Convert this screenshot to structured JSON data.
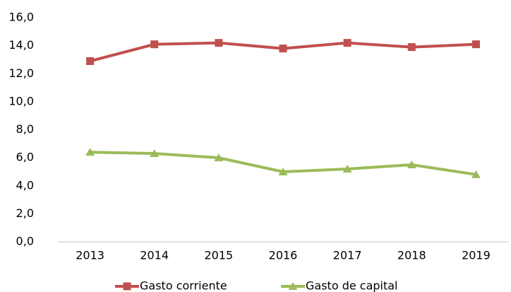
{
  "chart_data": {
    "type": "line",
    "categories": [
      "2013",
      "2014",
      "2015",
      "2016",
      "2017",
      "2018",
      "2019"
    ],
    "series": [
      {
        "name": "Gasto corriente",
        "color": "#c0504d",
        "marker": "square",
        "values": [
          12.9,
          14.1,
          14.2,
          13.8,
          14.2,
          13.9,
          14.1
        ]
      },
      {
        "name": "Gasto de capital",
        "color": "#9bbb59",
        "marker": "triangle",
        "values": [
          6.4,
          6.3,
          6.0,
          5.0,
          5.2,
          5.5,
          4.8
        ]
      }
    ],
    "ylim": [
      0,
      16
    ],
    "yticks": [
      {
        "value": 0,
        "label": "0,0"
      },
      {
        "value": 2,
        "label": "2,0"
      },
      {
        "value": 4,
        "label": "4,0"
      },
      {
        "value": 6,
        "label": "6,0"
      },
      {
        "value": 8,
        "label": "8,0"
      },
      {
        "value": 10,
        "label": "10,0"
      },
      {
        "value": 12,
        "label": "12,0"
      },
      {
        "value": 14,
        "label": "14,0"
      },
      {
        "value": 16,
        "label": "16,0"
      }
    ],
    "grid": false,
    "legend": "bottom"
  }
}
